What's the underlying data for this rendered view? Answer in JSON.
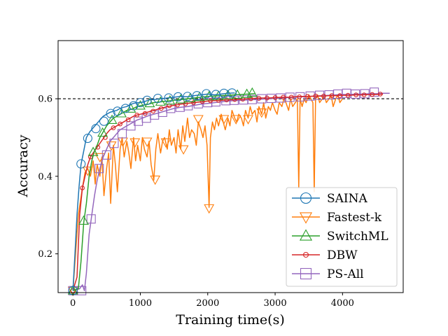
{
  "chart_data": {
    "type": "line",
    "title": "",
    "xlabel": "Training time(s)",
    "ylabel": "Accuracy",
    "xlim": [
      -220,
      4900
    ],
    "ylim": [
      0.1,
      0.75
    ],
    "xticks": [
      0,
      1000,
      2000,
      3000,
      4000
    ],
    "yticks": [
      0.2,
      0.4,
      0.6
    ],
    "reference_line": {
      "y": 0.6,
      "label": "0.6",
      "style": "dashed",
      "color": "#000000"
    },
    "legend_position": "lower-right",
    "grid": false,
    "series": [
      {
        "name": "SAINA",
        "color": "#1f77b4",
        "marker": "circle",
        "x": [
          0,
          30,
          60,
          90,
          120,
          160,
          200,
          250,
          300,
          350,
          400,
          450,
          500,
          550,
          600,
          650,
          700,
          750,
          800,
          850,
          900,
          950,
          1000,
          1050,
          1100,
          1150,
          1200,
          1300,
          1400,
          1500,
          1600,
          1700,
          1800,
          1900,
          2000,
          2100,
          2200,
          2300,
          2400
        ],
        "y": [
          0.105,
          0.2,
          0.3,
          0.37,
          0.43,
          0.465,
          0.5,
          0.515,
          0.525,
          0.535,
          0.545,
          0.555,
          0.56,
          0.565,
          0.568,
          0.57,
          0.575,
          0.578,
          0.58,
          0.585,
          0.588,
          0.59,
          0.59,
          0.592,
          0.595,
          0.598,
          0.598,
          0.6,
          0.602,
          0.604,
          0.606,
          0.605,
          0.608,
          0.61,
          0.612,
          0.61,
          0.612,
          0.614,
          0.615
        ],
        "marker_x": [
          0,
          120,
          220,
          340,
          460,
          560,
          660,
          780,
          900,
          1000,
          1100,
          1260,
          1420,
          1560,
          1700,
          1840,
          1980,
          2120,
          2240,
          2360
        ],
        "marker_y": [
          0.105,
          0.432,
          0.498,
          0.523,
          0.542,
          0.562,
          0.568,
          0.575,
          0.582,
          0.59,
          0.596,
          0.601,
          0.602,
          0.605,
          0.606,
          0.608,
          0.613,
          0.611,
          0.614,
          0.615
        ]
      },
      {
        "name": "Fastest-k",
        "color": "#ff7f0e",
        "marker": "triangle-down",
        "x": [
          0,
          80,
          140,
          180,
          220,
          260,
          300,
          330,
          360,
          400,
          430,
          460,
          500,
          530,
          560,
          600,
          630,
          660,
          700,
          730,
          760,
          800,
          830,
          860,
          900,
          930,
          960,
          1000,
          1030,
          1060,
          1100,
          1130,
          1160,
          1200,
          1230,
          1260,
          1300,
          1330,
          1360,
          1400,
          1430,
          1460,
          1500,
          1530,
          1560,
          1600,
          1630,
          1660,
          1700,
          1730,
          1760,
          1800,
          1830,
          1860,
          1900,
          1930,
          1960,
          1990,
          2020,
          2040,
          2070,
          2100,
          2130,
          2160,
          2200,
          2230,
          2260,
          2300,
          2330,
          2360,
          2400,
          2430,
          2460,
          2500,
          2530,
          2560,
          2600,
          2630,
          2660,
          2700,
          2730,
          2760,
          2800,
          2830,
          2860,
          2900,
          2930,
          2960,
          3000,
          3030,
          3060,
          3100,
          3130,
          3160,
          3200,
          3230,
          3260,
          3300,
          3330,
          3350,
          3370,
          3400,
          3430,
          3460,
          3500,
          3530,
          3560,
          3580,
          3600,
          3630,
          3660,
          3700,
          3730,
          3760,
          3800,
          3830,
          3860,
          3900,
          3930,
          3960,
          4000
        ],
        "y": [
          0.105,
          0.3,
          0.37,
          0.41,
          0.42,
          0.4,
          0.44,
          0.38,
          0.43,
          0.4,
          0.45,
          0.35,
          0.42,
          0.46,
          0.33,
          0.48,
          0.43,
          0.36,
          0.47,
          0.5,
          0.45,
          0.49,
          0.46,
          0.42,
          0.5,
          0.44,
          0.48,
          0.44,
          0.5,
          0.47,
          0.45,
          0.49,
          0.43,
          0.39,
          0.47,
          0.51,
          0.46,
          0.49,
          0.5,
          0.47,
          0.52,
          0.48,
          0.5,
          0.46,
          0.52,
          0.47,
          0.53,
          0.49,
          0.55,
          0.5,
          0.52,
          0.51,
          0.48,
          0.54,
          0.52,
          0.5,
          0.53,
          0.48,
          0.32,
          0.5,
          0.54,
          0.52,
          0.55,
          0.53,
          0.56,
          0.54,
          0.52,
          0.55,
          0.53,
          0.57,
          0.55,
          0.54,
          0.56,
          0.55,
          0.53,
          0.57,
          0.55,
          0.58,
          0.56,
          0.57,
          0.54,
          0.58,
          0.56,
          0.59,
          0.55,
          0.58,
          0.57,
          0.59,
          0.57,
          0.56,
          0.59,
          0.58,
          0.6,
          0.59,
          0.57,
          0.6,
          0.58,
          0.59,
          0.6,
          0.37,
          0.6,
          0.58,
          0.6,
          0.59,
          0.61,
          0.6,
          0.59,
          0.36,
          0.6,
          0.61,
          0.59,
          0.6,
          0.61,
          0.59,
          0.6,
          0.61,
          0.58,
          0.6,
          0.61,
          0.59,
          0.6
        ],
        "marker_x": [
          0,
          220,
          400,
          570,
          740,
          920,
          1100,
          1220,
          1380,
          1640,
          1860,
          2020,
          2240,
          2420,
          2600,
          2800
        ],
        "marker_y": [
          0.105,
          0.415,
          0.45,
          0.48,
          0.49,
          0.488,
          0.49,
          0.392,
          0.488,
          0.47,
          0.548,
          0.318,
          0.548,
          0.548,
          0.548,
          0.565
        ]
      },
      {
        "name": "SwitchML",
        "color": "#2ca02c",
        "marker": "triangle-up",
        "x": [
          0,
          80,
          120,
          160,
          200,
          240,
          280,
          320,
          360,
          400,
          450,
          500,
          550,
          600,
          650,
          700,
          750,
          800,
          850,
          900,
          950,
          1000,
          1100,
          1200,
          1300,
          1400,
          1500,
          1600,
          1700,
          1800,
          1900,
          2000,
          2100,
          2200,
          2300,
          2400,
          2500,
          2600,
          2700
        ],
        "y": [
          0.105,
          0.11,
          0.18,
          0.28,
          0.33,
          0.4,
          0.44,
          0.465,
          0.48,
          0.5,
          0.515,
          0.53,
          0.54,
          0.55,
          0.555,
          0.56,
          0.565,
          0.57,
          0.572,
          0.575,
          0.58,
          0.582,
          0.585,
          0.59,
          0.592,
          0.594,
          0.596,
          0.598,
          0.6,
          0.602,
          0.604,
          0.606,
          0.607,
          0.608,
          0.609,
          0.61,
          0.611,
          0.612,
          0.613
        ],
        "marker_x": [
          0,
          160,
          300,
          440,
          580,
          720,
          860,
          1000,
          1140,
          1300,
          1440,
          1600,
          1740,
          1880,
          2020,
          2160,
          2300,
          2440,
          2580,
          2660
        ],
        "marker_y": [
          0.105,
          0.285,
          0.462,
          0.512,
          0.545,
          0.562,
          0.574,
          0.582,
          0.588,
          0.592,
          0.595,
          0.598,
          0.601,
          0.604,
          0.606,
          0.607,
          0.609,
          0.61,
          0.612,
          0.615
        ]
      },
      {
        "name": "DBW",
        "color": "#d62728",
        "marker": "small-circle",
        "x": [
          0,
          60,
          100,
          140,
          180,
          220,
          260,
          300,
          340,
          380,
          420,
          460,
          500,
          550,
          600,
          650,
          700,
          750,
          800,
          850,
          900,
          950,
          1000,
          1100,
          1200,
          1300,
          1400,
          1500,
          1600,
          1700,
          1800,
          1900,
          2000,
          2100,
          2200,
          2300,
          2400,
          2500,
          2600,
          2700,
          2800,
          2900,
          3000,
          3100,
          3200,
          3300,
          3400,
          3500,
          3600,
          3700,
          3800,
          3900,
          4000,
          4100,
          4200,
          4300,
          4400,
          4500,
          4600
        ],
        "y": [
          0.105,
          0.14,
          0.3,
          0.37,
          0.4,
          0.43,
          0.45,
          0.46,
          0.47,
          0.48,
          0.49,
          0.5,
          0.51,
          0.52,
          0.525,
          0.53,
          0.535,
          0.54,
          0.545,
          0.55,
          0.555,
          0.558,
          0.56,
          0.565,
          0.57,
          0.575,
          0.58,
          0.583,
          0.586,
          0.588,
          0.59,
          0.592,
          0.594,
          0.595,
          0.596,
          0.597,
          0.598,
          0.599,
          0.6,
          0.601,
          0.602,
          0.602,
          0.603,
          0.604,
          0.604,
          0.605,
          0.606,
          0.606,
          0.607,
          0.607,
          0.608,
          0.608,
          0.609,
          0.609,
          0.61,
          0.61,
          0.611,
          0.611,
          0.612
        ],
        "marker_x": [
          0,
          140,
          260,
          370,
          480,
          600,
          700,
          820,
          950,
          1070,
          1190,
          1310,
          1430,
          1550,
          1670,
          1790,
          1920,
          2040,
          2160,
          2280,
          2400,
          2520,
          2640,
          2760,
          2880,
          3000,
          3120,
          3240,
          3360,
          3480,
          3600,
          3720,
          3840,
          3960,
          4080,
          4200,
          4320,
          4440,
          4560
        ],
        "marker_y": [
          0.105,
          0.37,
          0.45,
          0.475,
          0.5,
          0.525,
          0.535,
          0.546,
          0.558,
          0.562,
          0.568,
          0.575,
          0.582,
          0.584,
          0.587,
          0.59,
          0.593,
          0.595,
          0.596,
          0.597,
          0.598,
          0.599,
          0.6,
          0.601,
          0.602,
          0.603,
          0.604,
          0.604,
          0.605,
          0.606,
          0.607,
          0.607,
          0.608,
          0.608,
          0.609,
          0.61,
          0.61,
          0.611,
          0.612
        ]
      },
      {
        "name": "PS-All",
        "color": "#9467bd",
        "marker": "square",
        "x": [
          0,
          100,
          140,
          170,
          200,
          240,
          280,
          320,
          360,
          400,
          450,
          500,
          550,
          600,
          650,
          700,
          750,
          800,
          850,
          900,
          950,
          1000,
          1100,
          1200,
          1300,
          1400,
          1500,
          1600,
          1700,
          1800,
          1900,
          2000,
          2100,
          2200,
          2300,
          2400,
          2500,
          2600,
          2700,
          2800,
          2900,
          3000,
          3100,
          3200,
          3300,
          3400,
          3500,
          3600,
          3700,
          3800,
          3900,
          4000,
          4100,
          4200,
          4300,
          4400,
          4500,
          4600,
          4700
        ],
        "y": [
          0.105,
          0.11,
          0.12,
          0.105,
          0.15,
          0.25,
          0.3,
          0.35,
          0.39,
          0.42,
          0.45,
          0.47,
          0.49,
          0.5,
          0.51,
          0.52,
          0.525,
          0.53,
          0.535,
          0.54,
          0.545,
          0.548,
          0.555,
          0.56,
          0.565,
          0.57,
          0.575,
          0.578,
          0.58,
          0.583,
          0.586,
          0.588,
          0.59,
          0.592,
          0.594,
          0.595,
          0.596,
          0.597,
          0.598,
          0.599,
          0.6,
          0.601,
          0.602,
          0.603,
          0.604,
          0.605,
          0.606,
          0.607,
          0.608,
          0.609,
          0.61,
          0.611,
          0.611,
          0.612,
          0.612,
          0.613,
          0.613,
          0.614,
          0.614
        ],
        "marker_x": [
          0,
          130,
          270,
          390,
          500,
          610,
          730,
          860,
          970,
          1090,
          1210,
          1330,
          1450,
          1590,
          1710,
          1860,
          2000,
          2120,
          2270,
          2390,
          2530,
          2660,
          2800,
          2940,
          3080,
          3220,
          3370,
          3520,
          3660,
          3800,
          3930,
          4060,
          4190,
          4330,
          4470
        ],
        "marker_y": [
          0.105,
          0.105,
          0.29,
          0.42,
          0.455,
          0.485,
          0.51,
          0.53,
          0.542,
          0.55,
          0.558,
          0.565,
          0.575,
          0.578,
          0.582,
          0.587,
          0.59,
          0.592,
          0.595,
          0.596,
          0.597,
          0.598,
          0.6,
          0.601,
          0.602,
          0.604,
          0.605,
          0.607,
          0.609,
          0.61,
          0.612,
          0.614,
          0.612,
          0.613,
          0.617
        ]
      }
    ]
  }
}
